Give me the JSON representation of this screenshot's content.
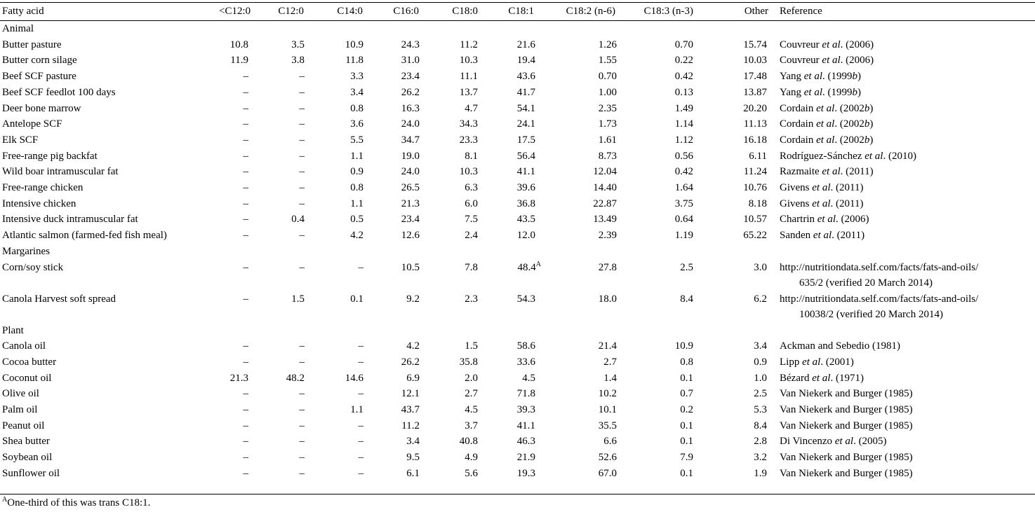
{
  "headers": [
    "Fatty acid",
    "<C12:0",
    "C12:0",
    "C14:0",
    "C16:0",
    "C18:0",
    "C18:1",
    "C18:2  (n-6)",
    "C18:3 (n-3)",
    "Other",
    "Reference"
  ],
  "groups": [
    {
      "name": "Animal",
      "rows": [
        {
          "name": "Butter pasture",
          "v": [
            "10.8",
            "3.5",
            "10.9",
            "24.3",
            "11.2",
            "21.6",
            "1.26",
            "0.70",
            "15.74"
          ],
          "ref": [
            "Couvreur ",
            "et al",
            ". (2006)"
          ]
        },
        {
          "name": "Butter corn silage",
          "v": [
            "11.9",
            "3.8",
            "11.8",
            "31.0",
            "10.3",
            "19.4",
            "1.55",
            "0.22",
            "10.03"
          ],
          "ref": [
            "Couvreur ",
            "et al",
            ". (2006)"
          ]
        },
        {
          "name": "Beef SCF pasture",
          "v": [
            "–",
            "–",
            "3.3",
            "23.4",
            "11.1",
            "43.6",
            "0.70",
            "0.42",
            "17.48"
          ],
          "ref": [
            "Yang ",
            "et al",
            ". (1999",
            "b",
            ")"
          ]
        },
        {
          "name": "Beef SCF feedlot 100 days",
          "v": [
            "–",
            "–",
            "3.4",
            "26.2",
            "13.7",
            "41.7",
            "1.00",
            "0.13",
            "13.87"
          ],
          "ref": [
            "Yang ",
            "et al",
            ". (1999",
            "b",
            ")"
          ]
        },
        {
          "name": "Deer bone marrow",
          "v": [
            "–",
            "–",
            "0.8",
            "16.3",
            "4.7",
            "54.1",
            "2.35",
            "1.49",
            "20.20"
          ],
          "ref": [
            "Cordain ",
            "et al",
            ". (2002",
            "b",
            ")"
          ]
        },
        {
          "name": "Antelope SCF",
          "v": [
            "–",
            "–",
            "3.6",
            "24.0",
            "34.3",
            "24.1",
            "1.73",
            "1.14",
            "11.13"
          ],
          "ref": [
            "Cordain ",
            "et al",
            ". (2002",
            "b",
            ")"
          ]
        },
        {
          "name": "Elk SCF",
          "v": [
            "–",
            "–",
            "5.5",
            "34.7",
            "23.3",
            "17.5",
            "1.61",
            "1.12",
            "16.18"
          ],
          "ref": [
            "Cordain ",
            "et al",
            ". (2002",
            "b",
            ")"
          ]
        },
        {
          "name": "Free-range pig backfat",
          "v": [
            "–",
            "–",
            "1.1",
            "19.0",
            "8.1",
            "56.4",
            "8.73",
            "0.56",
            "6.11"
          ],
          "ref": [
            "Rodríguez-Sánchez ",
            "et al",
            ". (2010)"
          ]
        },
        {
          "name": "Wild boar intramuscular fat",
          "v": [
            "–",
            "–",
            "0.9",
            "24.0",
            "10.3",
            "41.1",
            "12.04",
            "0.42",
            "11.24"
          ],
          "ref": [
            "Razmaite ",
            "et al",
            ". (2011)"
          ]
        },
        {
          "name": "Free-range chicken",
          "v": [
            "–",
            "–",
            "0.8",
            "26.5",
            "6.3",
            "39.6",
            "14.40",
            "1.64",
            "10.76"
          ],
          "ref": [
            "Givens ",
            "et al",
            ". (2011)"
          ]
        },
        {
          "name": "Intensive chicken",
          "v": [
            "–",
            "–",
            "1.1",
            "21.3",
            "6.0",
            "36.8",
            "22.87",
            "3.75",
            "8.18"
          ],
          "ref": [
            "Givens ",
            "et al",
            ". (2011)"
          ]
        },
        {
          "name": "Intensive duck intramuscular fat",
          "v": [
            "–",
            "0.4",
            "0.5",
            "23.4",
            "7.5",
            "43.5",
            "13.49",
            "0.64",
            "10.57"
          ],
          "ref": [
            "Chartrin ",
            "et al",
            ". (2006)"
          ]
        },
        {
          "name": "Atlantic salmon (farmed-fed fish meal)",
          "v": [
            "–",
            "–",
            "4.2",
            "12.6",
            "2.4",
            "12.0",
            "2.39",
            "1.19",
            "65.22"
          ],
          "ref": [
            "Sanden ",
            "et al",
            ". (2011)"
          ]
        }
      ]
    },
    {
      "name": "Margarines",
      "rows": [
        {
          "name": "Corn/soy stick",
          "v": [
            "–",
            "–",
            "–",
            "10.5",
            "7.8",
            "48.4",
            "27.8",
            "2.5",
            "3.0"
          ],
          "sup": "A",
          "ref": [
            "http://nutritiondata.self.com/facts/fats-and-oils/"
          ],
          "ref2": "635/2 (verified 20 March 2014)"
        },
        {
          "name": "Canola Harvest soft spread",
          "v": [
            "–",
            "1.5",
            "0.1",
            "9.2",
            "2.3",
            "54.3",
            "18.0",
            "8.4",
            "6.2"
          ],
          "ref": [
            "http://nutritiondata.self.com/facts/fats-and-oils/"
          ],
          "ref2": "10038/2 (verified 20 March 2014)"
        }
      ]
    },
    {
      "name": "Plant",
      "rows": [
        {
          "name": "Canola oil",
          "v": [
            "–",
            "–",
            "–",
            "4.2",
            "1.5",
            "58.6",
            "21.4",
            "10.9",
            "3.4"
          ],
          "ref": [
            "Ackman and Sebedio (1981)"
          ]
        },
        {
          "name": "Cocoa butter",
          "v": [
            "–",
            "–",
            "–",
            "26.2",
            "35.8",
            "33.6",
            "2.7",
            "0.8",
            "0.9"
          ],
          "ref": [
            "Lipp ",
            "et al",
            ". (2001)"
          ]
        },
        {
          "name": "Coconut oil",
          "v": [
            "21.3",
            "48.2",
            "14.6",
            "6.9",
            "2.0",
            "4.5",
            "1.4",
            "0.1",
            "1.0"
          ],
          "ref": [
            "Bézard ",
            "et al",
            ". (1971)"
          ]
        },
        {
          "name": "Olive oil",
          "v": [
            "–",
            "–",
            "–",
            "12.1",
            "2.7",
            "71.8",
            "10.2",
            "0.7",
            "2.5"
          ],
          "ref": [
            "Van Niekerk and Burger (1985)"
          ]
        },
        {
          "name": "Palm oil",
          "v": [
            "–",
            "–",
            "1.1",
            "43.7",
            "4.5",
            "39.3",
            "10.1",
            "0.2",
            "5.3"
          ],
          "ref": [
            "Van Niekerk and Burger (1985)"
          ]
        },
        {
          "name": "Peanut oil",
          "v": [
            "–",
            "–",
            "–",
            "11.2",
            "3.7",
            "41.1",
            "35.5",
            "0.1",
            "8.4"
          ],
          "ref": [
            "Van Niekerk and Burger (1985)"
          ]
        },
        {
          "name": "Shea butter",
          "v": [
            "–",
            "–",
            "–",
            "3.4",
            "40.8",
            "46.3",
            "6.6",
            "0.1",
            "2.8"
          ],
          "ref": [
            "Di Vincenzo ",
            "et al",
            ". (2005)"
          ]
        },
        {
          "name": "Soybean oil",
          "v": [
            "–",
            "–",
            "–",
            "9.5",
            "4.9",
            "21.9",
            "52.6",
            "7.9",
            "3.2"
          ],
          "ref": [
            "Van Niekerk and Burger (1985)"
          ]
        },
        {
          "name": "Sunflower oil",
          "v": [
            "–",
            "–",
            "–",
            "6.1",
            "5.6",
            "19.3",
            "67.0",
            "0.1",
            "1.9"
          ],
          "ref": [
            "Van Niekerk and Burger (1985)"
          ]
        }
      ]
    }
  ],
  "footnote": {
    "mark": "A",
    "text": "One-third of this was trans C18:1."
  }
}
